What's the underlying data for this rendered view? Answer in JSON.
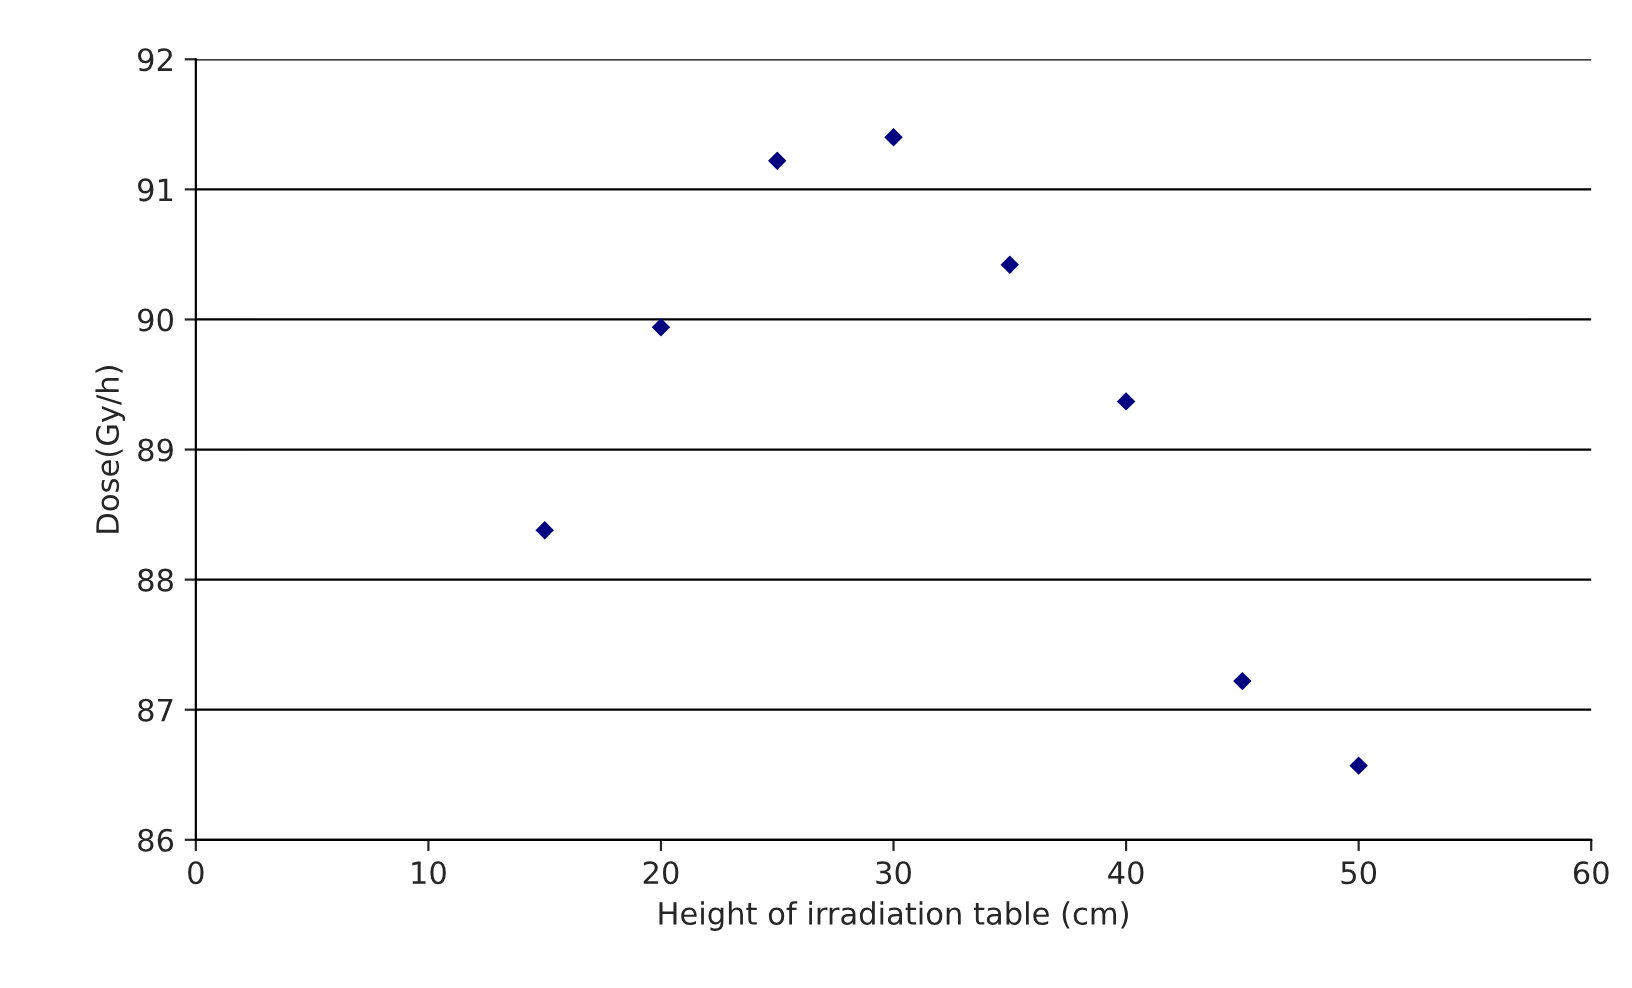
{
  "chart_data": {
    "type": "scatter",
    "xlabel": "Height of irradiation table (cm)",
    "ylabel": "Dose(Gy/h)",
    "x": [
      15,
      20,
      25,
      30,
      35,
      40,
      45,
      50
    ],
    "series": [
      {
        "color": "#000080",
        "values": [
          88.38,
          89.94,
          91.22,
          91.4,
          90.42,
          89.37,
          87.22,
          86.57
        ]
      }
    ],
    "xlim": [
      0,
      60
    ],
    "xticks": [
      0,
      10,
      20,
      30,
      40,
      50,
      60
    ],
    "ylim": [
      86,
      92
    ],
    "yticks": [
      86,
      87,
      88,
      89,
      90,
      91,
      92
    ],
    "grid": "y",
    "marker": "diamond"
  }
}
